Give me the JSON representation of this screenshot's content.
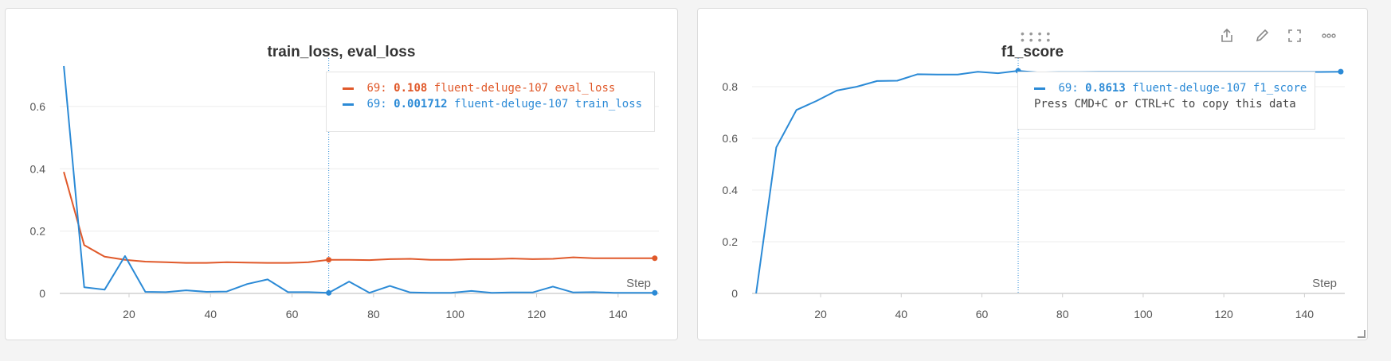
{
  "panels": [
    {
      "title": "train_loss, eval_loss",
      "x_axis_label": "Step",
      "legend": [
        {
          "step": "69:",
          "value": "0.108",
          "run": "fluent-deluge-107 eval_loss",
          "color": "#e0592a"
        },
        {
          "step": "69:",
          "value": "0.001712",
          "run": "fluent-deluge-107 train_loss",
          "color": "#2b8ad6"
        }
      ],
      "legend_note": ""
    },
    {
      "title": "f1_score",
      "x_axis_label": "Step",
      "legend": [
        {
          "step": "69:",
          "value": "0.8613",
          "run": "fluent-deluge-107 f1_score",
          "color": "#2b8ad6"
        }
      ],
      "legend_note": "Press CMD+C or CTRL+C to copy this data"
    }
  ],
  "toolbar": {
    "icons": [
      "drag-handle-icon",
      "share-icon",
      "edit-icon",
      "fullscreen-icon",
      "more-icon"
    ]
  },
  "chart_data": [
    {
      "type": "line",
      "title": "train_loss, eval_loss",
      "xlabel": "Step",
      "ylabel": "",
      "xlim": [
        3,
        150
      ],
      "ylim": [
        0,
        0.73
      ],
      "xticks": [
        20,
        40,
        60,
        80,
        100,
        120,
        140
      ],
      "yticks": [
        0,
        0.2,
        0.4,
        0.6
      ],
      "hover_step": 69,
      "grid": true,
      "legend_position": "top-right",
      "series": [
        {
          "name": "fluent-deluge-107 eval_loss",
          "color": "#e0592a",
          "x": [
            4,
            9,
            14,
            19,
            24,
            29,
            34,
            39,
            44,
            49,
            54,
            59,
            64,
            69,
            74,
            79,
            84,
            89,
            94,
            99,
            104,
            109,
            114,
            119,
            124,
            129,
            134,
            139,
            144,
            149
          ],
          "y": [
            0.39,
            0.155,
            0.118,
            0.108,
            0.102,
            0.1,
            0.098,
            0.098,
            0.1,
            0.099,
            0.098,
            0.098,
            0.1,
            0.108,
            0.108,
            0.107,
            0.11,
            0.111,
            0.108,
            0.108,
            0.11,
            0.11,
            0.112,
            0.11,
            0.111,
            0.116,
            0.113,
            0.113,
            0.113,
            0.113
          ]
        },
        {
          "name": "fluent-deluge-107 train_loss",
          "color": "#2b8ad6",
          "x": [
            4,
            9,
            14,
            19,
            24,
            29,
            34,
            39,
            44,
            49,
            54,
            59,
            64,
            69,
            74,
            79,
            84,
            89,
            94,
            99,
            104,
            109,
            114,
            119,
            124,
            129,
            134,
            139,
            144,
            149
          ],
          "y": [
            0.73,
            0.02,
            0.012,
            0.12,
            0.005,
            0.004,
            0.01,
            0.005,
            0.006,
            0.03,
            0.045,
            0.004,
            0.004,
            0.0017,
            0.038,
            0.002,
            0.024,
            0.003,
            0.002,
            0.002,
            0.008,
            0.002,
            0.003,
            0.003,
            0.022,
            0.003,
            0.004,
            0.002,
            0.002,
            0.002
          ]
        }
      ]
    },
    {
      "type": "line",
      "title": "f1_score",
      "xlabel": "Step",
      "ylabel": "",
      "xlim": [
        3,
        150
      ],
      "ylim": [
        0,
        0.88
      ],
      "xticks": [
        20,
        40,
        60,
        80,
        100,
        120,
        140
      ],
      "yticks": [
        0,
        0.2,
        0.4,
        0.6,
        0.8
      ],
      "hover_step": 69,
      "grid": true,
      "legend_position": "top-right",
      "series": [
        {
          "name": "fluent-deluge-107 f1_score",
          "color": "#2b8ad6",
          "x": [
            4,
            9,
            14,
            19,
            24,
            29,
            34,
            39,
            44,
            49,
            54,
            59,
            64,
            69,
            74,
            79,
            84,
            89,
            94,
            99,
            104,
            109,
            114,
            119,
            124,
            129,
            134,
            139,
            144,
            149
          ],
          "y": [
            0.0,
            0.565,
            0.71,
            0.745,
            0.785,
            0.8,
            0.822,
            0.823,
            0.848,
            0.847,
            0.847,
            0.858,
            0.852,
            0.8613,
            0.855,
            0.856,
            0.856,
            0.857,
            0.857,
            0.857,
            0.857,
            0.857,
            0.857,
            0.857,
            0.857,
            0.857,
            0.857,
            0.857,
            0.857,
            0.858
          ]
        }
      ]
    }
  ]
}
